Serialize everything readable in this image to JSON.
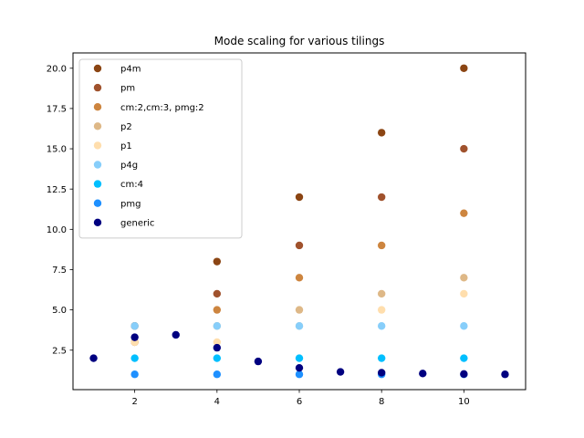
{
  "chart_data": {
    "type": "scatter",
    "title": "Mode scaling for various tilings",
    "xlabel": "",
    "ylabel": "",
    "xlim": [
      0.5,
      11.5
    ],
    "ylim": [
      0.05,
      20.95
    ],
    "xticks": [
      2,
      4,
      6,
      8,
      10
    ],
    "yticks": [
      2.5,
      5.0,
      7.5,
      10.0,
      12.5,
      15.0,
      17.5,
      20.0
    ],
    "legend_position": "upper-left",
    "series": [
      {
        "name": "p4m",
        "color": "#8b4513",
        "points": [
          [
            2,
            4
          ],
          [
            4,
            8
          ],
          [
            6,
            12
          ],
          [
            8,
            16
          ],
          [
            10,
            20
          ]
        ]
      },
      {
        "name": "pm",
        "color": "#a0522d",
        "points": [
          [
            2,
            3
          ],
          [
            4,
            6
          ],
          [
            6,
            9
          ],
          [
            8,
            12
          ],
          [
            10,
            15
          ]
        ]
      },
      {
        "name": "cm:2,cm:3, pmg:2",
        "color": "#cd853f",
        "points": [
          [
            2,
            3
          ],
          [
            4,
            5
          ],
          [
            6,
            7
          ],
          [
            8,
            9
          ],
          [
            10,
            11
          ]
        ]
      },
      {
        "name": "p2",
        "color": "#deb887",
        "points": [
          [
            2,
            3
          ],
          [
            4,
            4
          ],
          [
            6,
            5
          ],
          [
            8,
            6
          ],
          [
            10,
            7
          ]
        ]
      },
      {
        "name": "p1",
        "color": "#ffdead",
        "points": [
          [
            2,
            3
          ],
          [
            4,
            3
          ],
          [
            6,
            4
          ],
          [
            8,
            5
          ],
          [
            10,
            6
          ]
        ]
      },
      {
        "name": "p4g",
        "color": "#87cefa",
        "points": [
          [
            2,
            4
          ],
          [
            4,
            4
          ],
          [
            6,
            4
          ],
          [
            8,
            4
          ],
          [
            10,
            4
          ]
        ]
      },
      {
        "name": "cm:4",
        "color": "#00bfff",
        "points": [
          [
            2,
            2
          ],
          [
            4,
            2
          ],
          [
            6,
            2
          ],
          [
            8,
            2
          ],
          [
            10,
            2
          ]
        ]
      },
      {
        "name": "pmg",
        "color": "#1e90ff",
        "points": [
          [
            2,
            1
          ],
          [
            4,
            1
          ],
          [
            6,
            1
          ],
          [
            8,
            1
          ],
          [
            10,
            1
          ]
        ]
      },
      {
        "name": "generic",
        "color": "#000080",
        "points": [
          [
            1,
            2
          ],
          [
            2,
            3.3
          ],
          [
            3,
            3.45
          ],
          [
            4,
            2.65
          ],
          [
            5,
            1.8
          ],
          [
            6,
            1.4
          ],
          [
            7,
            1.15
          ],
          [
            8,
            1.1
          ],
          [
            9,
            1.05
          ],
          [
            10,
            1.02
          ],
          [
            11,
            1.0
          ]
        ]
      }
    ]
  }
}
